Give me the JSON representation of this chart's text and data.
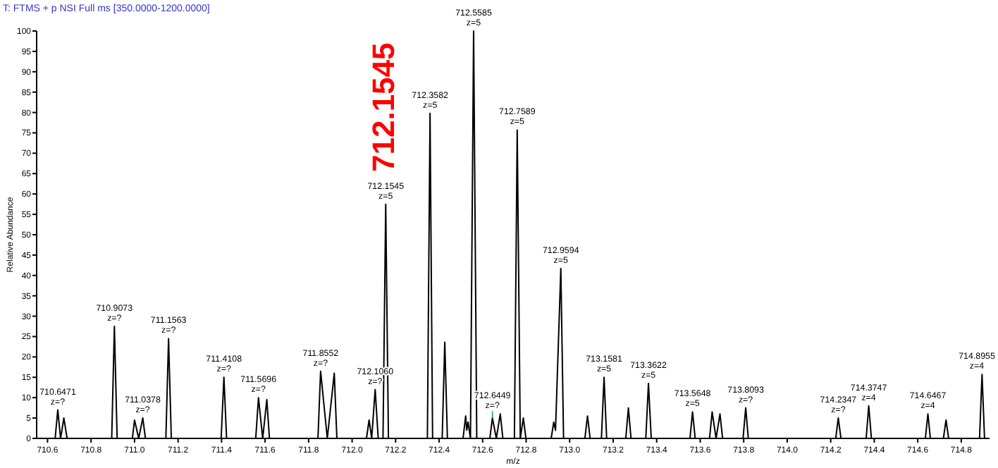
{
  "chart_data": {
    "type": "line",
    "title": "T: FTMS + p NSI Full ms [350.0000-1200.0000]",
    "xlabel": "m/z",
    "ylabel": "Relative Abundance",
    "xlim": [
      710.55,
      714.93
    ],
    "xticks": [
      {
        "value": 710.6,
        "label": "710.6"
      },
      {
        "value": 710.8,
        "label": "710.8"
      },
      {
        "value": 711,
        "label": "711.0"
      },
      {
        "value": 711.2,
        "label": "711.2"
      },
      {
        "value": 711.4,
        "label": "711.4"
      },
      {
        "value": 711.6,
        "label": "711.6"
      },
      {
        "value": 711.8,
        "label": "711.8"
      },
      {
        "value": 712,
        "label": "712.0"
      },
      {
        "value": 712.2,
        "label": "712.2"
      },
      {
        "value": 712.4,
        "label": "712.4"
      },
      {
        "value": 712.6,
        "label": "712.6"
      },
      {
        "value": 712.8,
        "label": "712.8"
      },
      {
        "value": 713,
        "label": "713.0"
      },
      {
        "value": 713.2,
        "label": "713.2"
      },
      {
        "value": 713.4,
        "label": "713.4"
      },
      {
        "value": 713.6,
        "label": "713.6"
      },
      {
        "value": 713.8,
        "label": "713.8"
      },
      {
        "value": 714,
        "label": "714.0"
      },
      {
        "value": 714.2,
        "label": "714.2"
      },
      {
        "value": 714.4,
        "label": "714.4"
      },
      {
        "value": 714.6,
        "label": "714.6"
      },
      {
        "value": 714.8,
        "label": "714.8"
      }
    ],
    "ylim": [
      0,
      100
    ],
    "yticks": [
      0,
      5,
      10,
      15,
      20,
      25,
      30,
      35,
      40,
      45,
      50,
      55,
      60,
      65,
      70,
      75,
      80,
      85,
      90,
      95,
      100
    ],
    "grid": false,
    "marker": "none",
    "line_style": "solid",
    "series": [
      {
        "color": "#000000",
        "x": [
          710.55,
          710.635,
          710.6471,
          710.66,
          710.675,
          710.69,
          710.895,
          710.9073,
          710.92,
          710.99,
          711.0,
          711.019,
          711.0378,
          711.05,
          711.144,
          711.1563,
          711.169,
          711.398,
          711.4108,
          711.423,
          711.557,
          711.5696,
          711.589,
          711.608,
          711.62,
          711.843,
          711.8552,
          711.886,
          711.918,
          711.93,
          712.066,
          712.078,
          712.09,
          712.106,
          712.12,
          712.142,
          712.1545,
          712.167,
          712.346,
          712.3582,
          712.37,
          712.414,
          712.426,
          712.438,
          712.51,
          712.522,
          712.527,
          712.533,
          712.544,
          712.5585,
          712.573,
          712.633,
          712.6449,
          712.663,
          712.681,
          712.693,
          712.746,
          712.7589,
          712.773,
          712.787,
          712.799,
          712.915,
          712.927,
          712.935,
          712.9594,
          712.972,
          713.07,
          713.082,
          713.094,
          713.146,
          713.1581,
          713.17,
          713.258,
          713.27,
          713.282,
          713.35,
          713.3622,
          713.375,
          713.553,
          713.5648,
          713.577,
          713.643,
          713.655,
          713.673,
          713.691,
          713.703,
          713.797,
          713.8093,
          713.821,
          714.223,
          714.2347,
          714.247,
          714.363,
          714.3747,
          714.387,
          714.635,
          714.6467,
          714.658,
          714.718,
          714.73,
          714.742,
          714.884,
          714.8955,
          714.907,
          714.93
        ],
        "values": [
          0,
          0,
          7,
          0,
          5,
          0,
          0,
          27.5,
          0,
          0,
          4.5,
          0,
          5,
          0,
          0,
          24.5,
          0,
          0,
          15,
          0,
          0,
          10,
          0,
          9.5,
          0,
          0,
          16.5,
          0,
          16,
          0,
          0,
          4.5,
          0,
          12,
          0,
          0,
          57.5,
          0,
          0,
          79.8,
          0,
          0,
          23.6,
          0,
          0,
          5.5,
          2,
          4,
          0,
          100,
          0,
          0,
          5,
          0,
          6,
          0,
          0,
          75.7,
          0,
          5,
          0,
          0,
          4,
          2,
          41.7,
          0,
          0,
          5.5,
          0,
          0,
          15,
          0,
          0,
          7.5,
          0,
          0,
          13.5,
          0,
          0,
          6.5,
          0,
          0,
          6.5,
          0,
          6,
          0,
          0,
          7.5,
          0,
          0,
          5,
          0,
          0,
          8,
          0,
          0,
          6,
          0,
          0,
          4.5,
          0,
          0,
          15.7,
          0,
          0
        ]
      }
    ],
    "annotations": [
      "712.1545",
      {
        "text": "710.6471\nz=?",
        "x": 710.6471,
        "y": 7
      },
      {
        "text": "710.9073\nz=?",
        "x": 710.9073,
        "y": 27.5
      },
      {
        "text": "711.0378\nz=?",
        "x": 711.0378,
        "y": 5
      },
      {
        "text": "711.1563\nz=?",
        "x": 711.1563,
        "y": 24.5
      },
      {
        "text": "711.4108\nz=?",
        "x": 711.4108,
        "y": 15
      },
      {
        "text": "711.5696\nz=?",
        "x": 711.5696,
        "y": 10
      },
      {
        "text": "711.8552\nz=?",
        "x": 711.8552,
        "y": 16.5
      },
      {
        "text": "712.1060\nz=?",
        "x": 712.106,
        "y": 12
      },
      {
        "text": "712.1545\nz=5",
        "x": 712.1545,
        "y": 57.5
      },
      {
        "text": "712.3582\nz=5",
        "x": 712.3582,
        "y": 79.8
      },
      {
        "text": "712.5585\nz=5",
        "x": 712.5585,
        "y": 100
      },
      {
        "text": "712.6449\nz=?",
        "x": 712.6449,
        "y": 5
      },
      {
        "text": "712.7589\nz=5",
        "x": 712.7589,
        "y": 75.7
      },
      {
        "text": "712.9594\nz=5",
        "x": 712.9594,
        "y": 41.7
      },
      {
        "text": "713.1581\nz=5",
        "x": 713.1581,
        "y": 15
      },
      {
        "text": "713.3622\nz=5",
        "x": 713.3622,
        "y": 13.5
      },
      {
        "text": "713.5648\nz=5",
        "x": 713.5648,
        "y": 6.5
      },
      {
        "text": "713.8093\nz=?",
        "x": 713.8093,
        "y": 7.5
      },
      {
        "text": "714.2347\nz=?",
        "x": 714.2347,
        "y": 5
      },
      {
        "text": "714.3747\nz=4",
        "x": 714.3747,
        "y": 8
      },
      {
        "text": "714.6467\nz=4",
        "x": 714.6467,
        "y": 6
      },
      {
        "text": "714.8955\nz=4",
        "x": 714.8955,
        "y": 15.7
      }
    ]
  }
}
